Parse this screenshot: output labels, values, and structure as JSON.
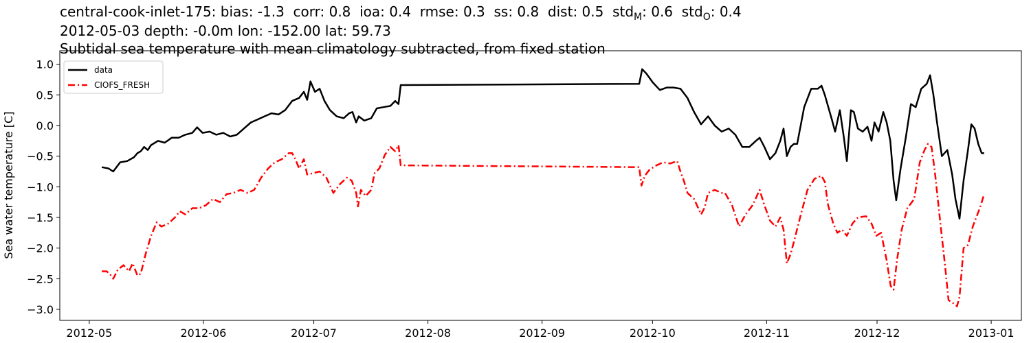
{
  "chart_data": {
    "type": "line",
    "title": [
      "central-cook-inlet-175: bias: -1.3  corr: 0.8  ioa: 0.4  rmse: 0.3  ss: 0.8  dist: 0.5  std",
      "M",
      ": 0.6  std",
      "O",
      ": 0.4"
    ],
    "subtitle": [
      "2012-05-03 depth: -0.0m lon: -152.00 lat: 59.73",
      "Subtidal sea temperature with mean climatology subtracted, from fixed station"
    ],
    "y_label": "Sea water temperature [C]",
    "legend": "upper left",
    "xlim": [
      -8.0,
      253.2
    ],
    "xticks": [
      {
        "value": 0,
        "label": "2012-05"
      },
      {
        "value": 31,
        "label": "2012-06"
      },
      {
        "value": 61,
        "label": "2012-07"
      },
      {
        "value": 92,
        "label": "2012-08"
      },
      {
        "value": 123,
        "label": "2012-09"
      },
      {
        "value": 153,
        "label": "2012-10"
      },
      {
        "value": 184,
        "label": "2012-11"
      },
      {
        "value": 214,
        "label": "2012-12"
      },
      {
        "value": 245,
        "label": "2013-01"
      }
    ],
    "ylim": [
      -3.18,
      1.22
    ],
    "yticks": [
      {
        "value": -3.0,
        "label": "−3.0"
      },
      {
        "value": -2.5,
        "label": "−2.5"
      },
      {
        "value": -2.0,
        "label": "−2.0"
      },
      {
        "value": -1.5,
        "label": "−1.5"
      },
      {
        "value": -1.0,
        "label": "−1.0"
      },
      {
        "value": -0.5,
        "label": "−0.5"
      },
      {
        "value": 0.0,
        "label": "0.0"
      },
      {
        "value": 0.5,
        "label": "0.5"
      },
      {
        "value": 1.0,
        "label": "1.0"
      }
    ],
    "series": [
      {
        "name": "data",
        "color": "#000000",
        "dash": "solid",
        "x": [
          3.4,
          5.2,
          6.5,
          8.4,
          10.3,
          12.1,
          13.1,
          14.0,
          14.9,
          15.9,
          16.8,
          18.7,
          20.5,
          22.4,
          24.3,
          26.1,
          28.0,
          29.3,
          30.8,
          32.7,
          34.5,
          36.4,
          38.3,
          40.1,
          42.0,
          43.9,
          45.8,
          47.6,
          49.5,
          51.4,
          53.2,
          55.1,
          57.0,
          58.3,
          59.2,
          60.1,
          61.3,
          62.6,
          63.9,
          65.4,
          67.2,
          69.1,
          70.6,
          71.5,
          72.5,
          73.2,
          74.7,
          76.6,
          78.1,
          79.9,
          81.8,
          83.1,
          84.0,
          84.6,
          149.4,
          150.2,
          151.3,
          153.1,
          155.0,
          156.9,
          158.7,
          160.6,
          162.5,
          164.3,
          166.2,
          168.1,
          169.9,
          171.8,
          173.7,
          175.5,
          177.4,
          179.3,
          181.1,
          182.1,
          183.4,
          184.9,
          186.4,
          187.7,
          188.6,
          189.5,
          190.5,
          191.4,
          192.3,
          194.2,
          196.1,
          197.9,
          198.9,
          199.8,
          201.7,
          202.6,
          203.9,
          205.0,
          205.8,
          206.9,
          207.7,
          208.8,
          210.1,
          211.4,
          212.5,
          213.3,
          214.4,
          215.7,
          216.6,
          217.6,
          218.5,
          219.2,
          220.4,
          221.8,
          223.2,
          224.5,
          226.0,
          227.5,
          228.4,
          229.3,
          230.3,
          231.6,
          233.1,
          234.4,
          235.3,
          236.4,
          237.5,
          238.7,
          239.6,
          240.5,
          241.5,
          242.4,
          243.1
        ],
        "values": [
          -0.68,
          -0.7,
          -0.75,
          -0.6,
          -0.58,
          -0.52,
          -0.45,
          -0.42,
          -0.35,
          -0.4,
          -0.32,
          -0.25,
          -0.28,
          -0.2,
          -0.2,
          -0.15,
          -0.12,
          -0.03,
          -0.12,
          -0.1,
          -0.15,
          -0.12,
          -0.18,
          -0.15,
          -0.05,
          0.05,
          0.1,
          0.15,
          0.2,
          0.18,
          0.25,
          0.4,
          0.45,
          0.55,
          0.42,
          0.72,
          0.55,
          0.6,
          0.4,
          0.25,
          0.15,
          0.12,
          0.2,
          0.22,
          0.05,
          0.15,
          0.08,
          0.12,
          0.28,
          0.3,
          0.32,
          0.4,
          0.35,
          0.66,
          0.68,
          0.92,
          0.85,
          0.7,
          0.58,
          0.62,
          0.62,
          0.6,
          0.45,
          0.22,
          0.02,
          0.15,
          0.0,
          -0.1,
          -0.05,
          -0.15,
          -0.35,
          -0.35,
          -0.25,
          -0.2,
          -0.35,
          -0.55,
          -0.45,
          -0.25,
          -0.05,
          -0.5,
          -0.35,
          -0.3,
          -0.3,
          0.3,
          0.6,
          0.6,
          0.65,
          0.5,
          0.1,
          -0.1,
          0.25,
          -0.2,
          -0.58,
          0.25,
          0.22,
          -0.05,
          -0.1,
          -0.02,
          -0.25,
          0.05,
          -0.1,
          0.22,
          0.05,
          -0.25,
          -0.9,
          -1.22,
          -0.7,
          -0.2,
          0.35,
          0.3,
          0.6,
          0.68,
          0.82,
          0.5,
          0.05,
          -0.5,
          -0.4,
          -0.8,
          -1.2,
          -1.52,
          -0.9,
          -0.4,
          0.02,
          -0.05,
          -0.3,
          -0.45,
          -0.45
        ]
      },
      {
        "name": "CIOFS_FRESH",
        "color": "#ff0000",
        "dash": "dashdot",
        "x": [
          3.4,
          4.7,
          5.6,
          6.5,
          7.8,
          9.3,
          10.8,
          11.8,
          13.1,
          14.0,
          15.3,
          16.8,
          18.3,
          19.6,
          21.5,
          23.3,
          24.6,
          26.1,
          28.0,
          29.9,
          31.7,
          33.6,
          35.5,
          37.3,
          39.2,
          41.1,
          43.0,
          44.8,
          46.7,
          48.6,
          50.4,
          52.3,
          54.2,
          55.1,
          56.0,
          57.0,
          58.3,
          59.2,
          60.7,
          62.6,
          64.4,
          66.3,
          68.2,
          70.0,
          71.3,
          72.5,
          73.0,
          73.8,
          75.1,
          76.6,
          77.5,
          78.8,
          80.3,
          81.8,
          83.1,
          84.0,
          84.6,
          149.4,
          150.0,
          150.9,
          152.2,
          154.1,
          155.9,
          157.8,
          159.7,
          160.6,
          161.5,
          162.5,
          164.3,
          166.2,
          167.1,
          168.1,
          169.9,
          171.8,
          172.7,
          174.6,
          176.5,
          178.3,
          180.2,
          182.1,
          183.4,
          184.9,
          186.4,
          187.7,
          188.6,
          189.5,
          190.5,
          191.4,
          193.3,
          195.1,
          197.0,
          198.9,
          199.8,
          200.7,
          202.1,
          203.2,
          204.5,
          205.8,
          207.3,
          208.8,
          211.0,
          212.5,
          213.8,
          215.1,
          216.6,
          217.7,
          218.5,
          219.4,
          220.7,
          222.2,
          224.1,
          225.6,
          226.9,
          227.8,
          228.8,
          229.7,
          231.2,
          232.5,
          233.4,
          234.7,
          235.7,
          236.4,
          237.5,
          238.7,
          240.0,
          241.9,
          243.1
        ],
        "values": [
          -2.38,
          -2.38,
          -2.42,
          -2.5,
          -2.35,
          -2.28,
          -2.38,
          -2.25,
          -2.45,
          -2.42,
          -2.1,
          -1.8,
          -1.58,
          -1.65,
          -1.6,
          -1.5,
          -1.4,
          -1.45,
          -1.35,
          -1.35,
          -1.3,
          -1.2,
          -1.25,
          -1.12,
          -1.1,
          -1.05,
          -1.1,
          -1.05,
          -0.85,
          -0.7,
          -0.6,
          -0.55,
          -0.45,
          -0.45,
          -0.55,
          -0.7,
          -0.55,
          -0.8,
          -0.78,
          -0.75,
          -0.85,
          -1.1,
          -0.95,
          -0.85,
          -0.9,
          -1.1,
          -1.32,
          -1.05,
          -1.15,
          -1.05,
          -0.78,
          -0.7,
          -0.48,
          -0.35,
          -0.42,
          -0.32,
          -0.65,
          -0.68,
          -0.98,
          -0.82,
          -0.72,
          -0.65,
          -0.6,
          -0.62,
          -0.58,
          -0.75,
          -0.9,
          -1.1,
          -1.2,
          -1.45,
          -1.35,
          -1.1,
          -1.05,
          -1.1,
          -1.1,
          -1.3,
          -1.65,
          -1.45,
          -1.3,
          -1.05,
          -1.3,
          -1.55,
          -1.65,
          -1.5,
          -1.7,
          -2.25,
          -2.1,
          -1.9,
          -1.45,
          -1.05,
          -0.87,
          -0.82,
          -0.92,
          -1.3,
          -1.6,
          -1.75,
          -1.7,
          -1.8,
          -1.6,
          -1.5,
          -1.48,
          -1.6,
          -1.8,
          -1.75,
          -2.2,
          -2.62,
          -2.68,
          -2.2,
          -1.7,
          -1.35,
          -1.2,
          -0.6,
          -0.4,
          -0.3,
          -0.35,
          -0.75,
          -1.6,
          -2.3,
          -2.85,
          -2.9,
          -2.95,
          -2.8,
          -2.0,
          -1.95,
          -1.65,
          -1.35,
          -1.12
        ]
      }
    ]
  }
}
